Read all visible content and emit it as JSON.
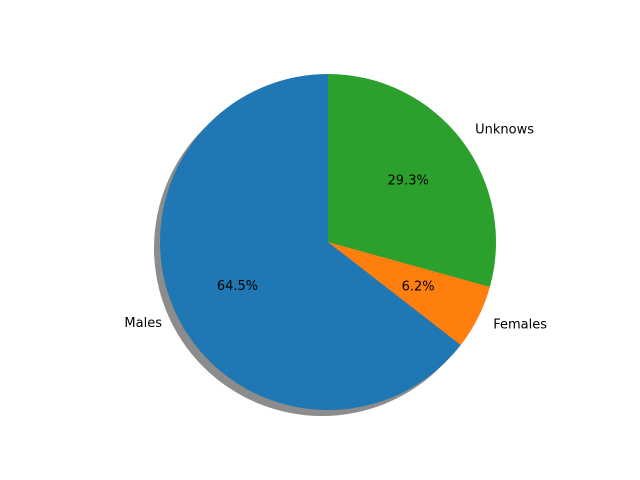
{
  "chart_data": {
    "type": "pie",
    "title": "",
    "start_angle_deg": 90,
    "direction": "counterclockwise",
    "shadow": true,
    "slices": [
      {
        "label": "Males",
        "value": 64.5,
        "pct_text": "64.5%",
        "color": "#1f77b4"
      },
      {
        "label": "Females",
        "value": 6.2,
        "pct_text": "6.2%",
        "color": "#ff7f0e"
      },
      {
        "label": "Unknows",
        "value": 29.3,
        "pct_text": "29.3%",
        "color": "#2ca02c"
      }
    ]
  }
}
